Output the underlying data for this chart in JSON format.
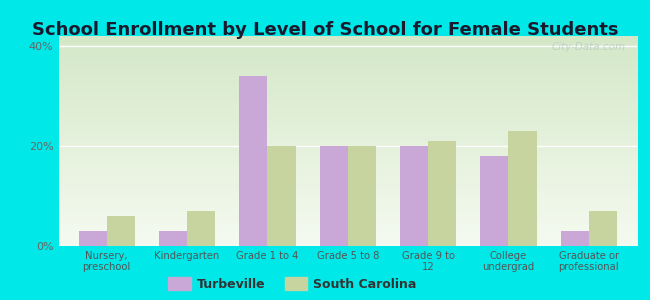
{
  "title": "School Enrollment by Level of School for Female Students",
  "categories": [
    "Nursery,\npreschool",
    "Kindergarten",
    "Grade 1 to 4",
    "Grade 5 to 8",
    "Grade 9 to\n12",
    "College\nundergrad",
    "Graduate or\nprofessional"
  ],
  "turbeville": [
    3,
    3,
    34,
    20,
    20,
    18,
    3
  ],
  "south_carolina": [
    6,
    7,
    20,
    20,
    21,
    23,
    7
  ],
  "turbeville_color": "#c9a8d8",
  "sc_color": "#c8d4a0",
  "background_color": "#00e8e8",
  "ylabel_ticks": [
    "0%",
    "20%",
    "40%"
  ],
  "ytick_values": [
    0,
    20,
    40
  ],
  "ylim": [
    0,
    42
  ],
  "legend_turbeville": "Turbeville",
  "legend_sc": "South Carolina",
  "title_fontsize": 13,
  "bar_width": 0.35
}
